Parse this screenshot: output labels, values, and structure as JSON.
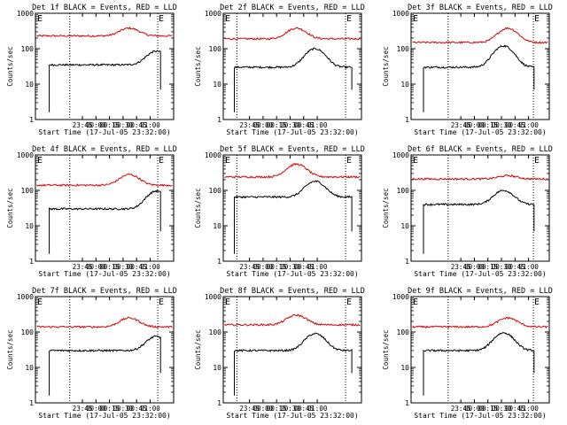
{
  "chart_data": [
    {
      "type": "line",
      "title": "Det 1f BLACK = Events, RED = LLD",
      "xlabel": "Start Time (17-Jul-05 23:32:00)",
      "ylabel": "Counts/sec",
      "x_ticks": [
        "23:45",
        "00:00",
        "00:15",
        "00:30",
        "00:45",
        "01:00"
      ],
      "y_ticks": [
        "1",
        "10",
        "100",
        "1000"
      ],
      "ylim": [
        1,
        1000
      ],
      "yscale": "log",
      "markers": [
        "E",
        "E"
      ],
      "series": [
        {
          "name": "LLD",
          "color": "#d40000",
          "baseline": 230,
          "peak": 380
        },
        {
          "name": "Events",
          "color": "#000000",
          "baseline": 35,
          "peak": 85
        }
      ]
    },
    {
      "type": "line",
      "title": "Det 2f BLACK = Events, RED = LLD",
      "xlabel": "Start Time (17-Jul-05 23:32:00)",
      "ylabel": "Counts/sec",
      "x_ticks": [
        "23:45",
        "00:00",
        "00:15",
        "00:30",
        "00:45",
        "01:00"
      ],
      "y_ticks": [
        "1",
        "10",
        "100",
        "1000"
      ],
      "ylim": [
        1,
        1000
      ],
      "yscale": "log",
      "markers": [
        "E",
        "E"
      ],
      "series": [
        {
          "name": "LLD",
          "color": "#d40000",
          "baseline": 190,
          "peak": 380
        },
        {
          "name": "Events",
          "color": "#000000",
          "baseline": 30,
          "peak": 100
        }
      ]
    },
    {
      "type": "line",
      "title": "Det 3f BLACK = Events, RED = LLD",
      "xlabel": "Start Time (17-Jul-05 23:32:00)",
      "ylabel": "Counts/sec",
      "x_ticks": [
        "23:45",
        "00:00",
        "00:15",
        "00:30",
        "00:45",
        "01:00"
      ],
      "y_ticks": [
        "1",
        "10",
        "100",
        "1000"
      ],
      "ylim": [
        1,
        1000
      ],
      "yscale": "log",
      "markers": [
        "E",
        "E"
      ],
      "series": [
        {
          "name": "LLD",
          "color": "#d40000",
          "baseline": 150,
          "peak": 380
        },
        {
          "name": "Events",
          "color": "#000000",
          "baseline": 30,
          "peak": 120
        }
      ]
    },
    {
      "type": "line",
      "title": "Det 4f BLACK = Events, RED = LLD",
      "xlabel": "Start Time (17-Jul-05 23:32:00)",
      "ylabel": "Counts/sec",
      "x_ticks": [
        "23:45",
        "00:00",
        "00:15",
        "00:30",
        "00:45",
        "01:00"
      ],
      "y_ticks": [
        "1",
        "10",
        "100",
        "1000"
      ],
      "ylim": [
        1,
        1000
      ],
      "yscale": "log",
      "markers": [
        "E",
        "E"
      ],
      "series": [
        {
          "name": "LLD",
          "color": "#d40000",
          "baseline": 140,
          "peak": 280
        },
        {
          "name": "Events",
          "color": "#000000",
          "baseline": 30,
          "peak": 95
        }
      ]
    },
    {
      "type": "line",
      "title": "Det 5f BLACK = Events, RED = LLD",
      "xlabel": "Start Time (17-Jul-05 23:32:00)",
      "ylabel": "Counts/sec",
      "x_ticks": [
        "23:45",
        "00:00",
        "00:15",
        "00:30",
        "00:45",
        "01:00"
      ],
      "y_ticks": [
        "1",
        "10",
        "100",
        "1000"
      ],
      "ylim": [
        1,
        1000
      ],
      "yscale": "log",
      "markers": [
        "E",
        "E"
      ],
      "series": [
        {
          "name": "LLD",
          "color": "#d40000",
          "baseline": 240,
          "peak": 550
        },
        {
          "name": "Events",
          "color": "#000000",
          "baseline": 65,
          "peak": 180
        }
      ]
    },
    {
      "type": "line",
      "title": "Det 6f BLACK = Events, RED = LLD",
      "xlabel": "Start Time (17-Jul-05 23:32:00)",
      "ylabel": "Counts/sec",
      "x_ticks": [
        "23:45",
        "00:00",
        "00:15",
        "00:30",
        "00:45",
        "01:00"
      ],
      "y_ticks": [
        "1",
        "10",
        "100",
        "1000"
      ],
      "ylim": [
        1,
        1000
      ],
      "yscale": "log",
      "markers": [
        "E",
        "E"
      ],
      "series": [
        {
          "name": "LLD",
          "color": "#d40000",
          "baseline": 210,
          "peak": 260
        },
        {
          "name": "Events",
          "color": "#000000",
          "baseline": 40,
          "peak": 100
        }
      ]
    },
    {
      "type": "line",
      "title": "Det 7f BLACK = Events, RED = LLD",
      "xlabel": "Start Time (17-Jul-05 23:32:00)",
      "ylabel": "Counts/sec",
      "x_ticks": [
        "23:45",
        "00:00",
        "00:15",
        "00:30",
        "00:45",
        "01:00"
      ],
      "y_ticks": [
        "1",
        "10",
        "100",
        "1000"
      ],
      "ylim": [
        1,
        1000
      ],
      "yscale": "log",
      "markers": [
        "E",
        "E"
      ],
      "series": [
        {
          "name": "LLD",
          "color": "#d40000",
          "baseline": 140,
          "peak": 250
        },
        {
          "name": "Events",
          "color": "#000000",
          "baseline": 30,
          "peak": 75
        }
      ]
    },
    {
      "type": "line",
      "title": "Det 8f BLACK = Events, RED = LLD",
      "xlabel": "Start Time (17-Jul-05 23:32:00)",
      "ylabel": "Counts/sec",
      "x_ticks": [
        "23:45",
        "00:00",
        "00:15",
        "00:30",
        "00:45",
        "01:00"
      ],
      "y_ticks": [
        "1",
        "10",
        "100",
        "1000"
      ],
      "ylim": [
        1,
        1000
      ],
      "yscale": "log",
      "markers": [
        "E",
        "E"
      ],
      "series": [
        {
          "name": "LLD",
          "color": "#d40000",
          "baseline": 160,
          "peak": 300
        },
        {
          "name": "Events",
          "color": "#000000",
          "baseline": 30,
          "peak": 90
        }
      ]
    },
    {
      "type": "line",
      "title": "Det 9f BLACK = Events, RED = LLD",
      "xlabel": "Start Time (17-Jul-05 23:32:00)",
      "ylabel": "Counts/sec",
      "x_ticks": [
        "23:45",
        "00:00",
        "00:15",
        "00:30",
        "00:45",
        "01:00"
      ],
      "y_ticks": [
        "1",
        "10",
        "100",
        "1000"
      ],
      "ylim": [
        1,
        1000
      ],
      "yscale": "log",
      "markers": [
        "E",
        "E"
      ],
      "series": [
        {
          "name": "LLD",
          "color": "#d40000",
          "baseline": 140,
          "peak": 250
        },
        {
          "name": "Events",
          "color": "#000000",
          "baseline": 30,
          "peak": 95
        }
      ]
    }
  ]
}
